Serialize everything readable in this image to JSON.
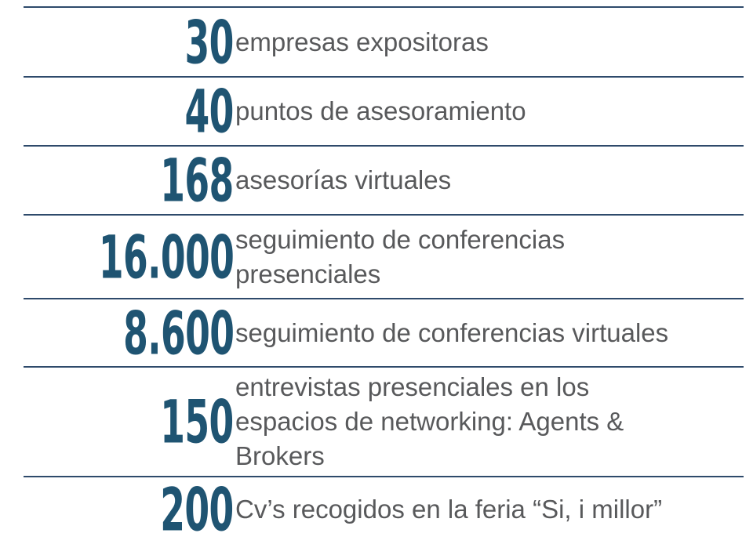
{
  "rows": [
    {
      "number": "30",
      "text": [
        "empresas expositoras"
      ]
    },
    {
      "number": "40",
      "text": [
        "puntos de asesoramiento"
      ]
    },
    {
      "number": "168",
      "text": [
        "asesorías virtuales"
      ]
    },
    {
      "number": "16.000",
      "text": [
        "seguimiento de conferencias",
        "presenciales"
      ]
    },
    {
      "number": "8.600",
      "text": [
        "seguimiento de conferencias virtuales"
      ]
    },
    {
      "number": "150",
      "text": [
        "entrevistas presenciales en los",
        "espacios de networking: Agents &",
        "Brokers"
      ]
    },
    {
      "number": "200",
      "text": [
        "Cv’s recogidos en la feria “Si, i millor”"
      ]
    }
  ]
}
